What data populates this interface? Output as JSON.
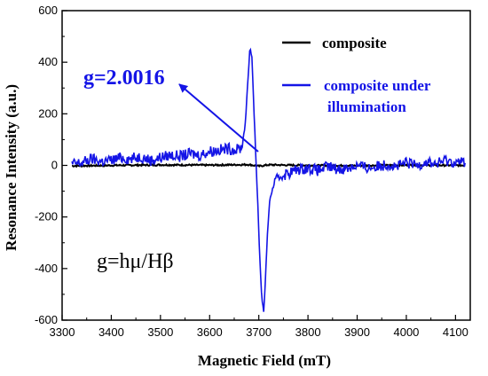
{
  "chart_data": {
    "type": "line",
    "xlabel": "Magnetic Field (mT)",
    "ylabel": "Resonance Intensity (a.u.)",
    "xlim": [
      3300,
      4130
    ],
    "ylim": [
      -600,
      600
    ],
    "xticks": [
      3300,
      3400,
      3500,
      3600,
      3700,
      3800,
      3900,
      4000,
      4100
    ],
    "yticks": [
      -600,
      -400,
      -200,
      0,
      200,
      400,
      600
    ],
    "legend_position": "top-right",
    "series": [
      {
        "name": "composite",
        "color": "#000000",
        "x": [
          3320,
          3400,
          3500,
          3600,
          3680,
          3700,
          3720,
          3800,
          3900,
          4000,
          4120
        ],
        "y": [
          -2,
          0,
          2,
          1,
          3,
          -3,
          2,
          0,
          -1,
          1,
          0
        ]
      },
      {
        "name": "composite under illumination",
        "legend_lines": [
          "composite under",
          "illumination"
        ],
        "color": "#1414e6",
        "x": [
          3320,
          3340,
          3360,
          3380,
          3400,
          3420,
          3440,
          3460,
          3480,
          3500,
          3520,
          3540,
          3560,
          3580,
          3600,
          3620,
          3640,
          3655,
          3665,
          3672,
          3678,
          3682,
          3686,
          3690,
          3694,
          3698,
          3702,
          3706,
          3710,
          3714,
          3718,
          3722,
          3728,
          3735,
          3745,
          3760,
          3780,
          3800,
          3820,
          3840,
          3860,
          3880,
          3900,
          3920,
          3940,
          3960,
          3980,
          4000,
          4020,
          4040,
          4060,
          4080,
          4100,
          4120
        ],
        "y": [
          5,
          10,
          25,
          15,
          20,
          30,
          25,
          35,
          20,
          30,
          40,
          35,
          45,
          40,
          55,
          60,
          65,
          60,
          70,
          150,
          330,
          460,
          420,
          220,
          30,
          -150,
          -360,
          -510,
          -570,
          -420,
          -250,
          -140,
          -90,
          -60,
          -40,
          -30,
          -15,
          -10,
          -20,
          -5,
          -15,
          -10,
          0,
          -10,
          -5,
          5,
          -5,
          10,
          0,
          15,
          5,
          20,
          10,
          15
        ]
      }
    ],
    "annotations": [
      {
        "text": "g=2.0016"
      },
      {
        "text": "g=hμ/Hβ"
      }
    ]
  }
}
